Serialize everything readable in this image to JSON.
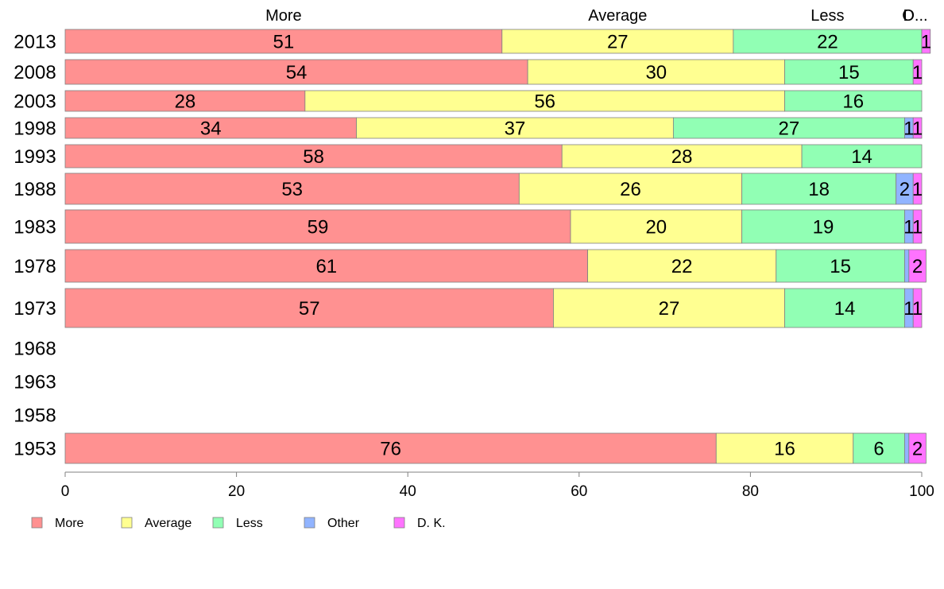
{
  "chart_data": {
    "type": "bar",
    "orientation": "horizontal",
    "stacked": true,
    "categories": [
      "2013",
      "2008",
      "2003",
      "1998",
      "1993",
      "1988",
      "1983",
      "1978",
      "1973",
      "1968",
      "1963",
      "1958",
      "1953"
    ],
    "series": [
      {
        "name": "More",
        "color": "#ff9191",
        "values": [
          51,
          54,
          28,
          34,
          58,
          53,
          59,
          61,
          57,
          null,
          null,
          null,
          76
        ]
      },
      {
        "name": "Average",
        "color": "#ffff91",
        "values": [
          27,
          30,
          56,
          37,
          28,
          26,
          20,
          22,
          27,
          null,
          null,
          null,
          16
        ]
      },
      {
        "name": "Less",
        "color": "#91ffb4",
        "values": [
          22,
          15,
          16,
          27,
          14,
          18,
          19,
          15,
          14,
          null,
          null,
          null,
          6
        ]
      },
      {
        "name": "Other",
        "color": "#91b4ff",
        "values": [
          0,
          0,
          0,
          1,
          0,
          2,
          1,
          0.5,
          1,
          null,
          null,
          null,
          0.5
        ]
      },
      {
        "name": "D. K.",
        "color": "#ff73ff",
        "values": [
          1,
          1,
          0,
          1,
          0,
          1,
          1,
          2,
          1,
          null,
          null,
          null,
          2
        ]
      }
    ],
    "segment_labels": [
      [
        "51",
        "27",
        "22",
        "",
        "1"
      ],
      [
        "54",
        "30",
        "15",
        "",
        "1"
      ],
      [
        "28",
        "56",
        "16",
        "",
        ""
      ],
      [
        "34",
        "37",
        "27",
        "1",
        "1"
      ],
      [
        "58",
        "28",
        "14",
        "",
        ""
      ],
      [
        "53",
        "26",
        "18",
        "2",
        "1"
      ],
      [
        "59",
        "20",
        "19",
        "1",
        "1"
      ],
      [
        "61",
        "22",
        "15",
        "",
        "2"
      ],
      [
        "57",
        "27",
        "14",
        "1",
        "1"
      ],
      [
        "",
        "",
        "",
        "",
        ""
      ],
      [
        "",
        "",
        "",
        "",
        ""
      ],
      [
        "",
        "",
        "",
        "",
        ""
      ],
      [
        "76",
        "16",
        "6",
        "",
        "2"
      ]
    ],
    "top_labels": [
      "More",
      "Average",
      "Less",
      "O",
      "D..."
    ],
    "xlim": [
      0,
      100
    ],
    "x_ticks": [
      0,
      20,
      40,
      60,
      80,
      100
    ],
    "title": "",
    "xlabel": "",
    "ylabel": "",
    "grid": false,
    "legend": {
      "position": "bottom-left",
      "items": [
        "More",
        "Average",
        "Less",
        "Other",
        "D. K."
      ]
    }
  }
}
